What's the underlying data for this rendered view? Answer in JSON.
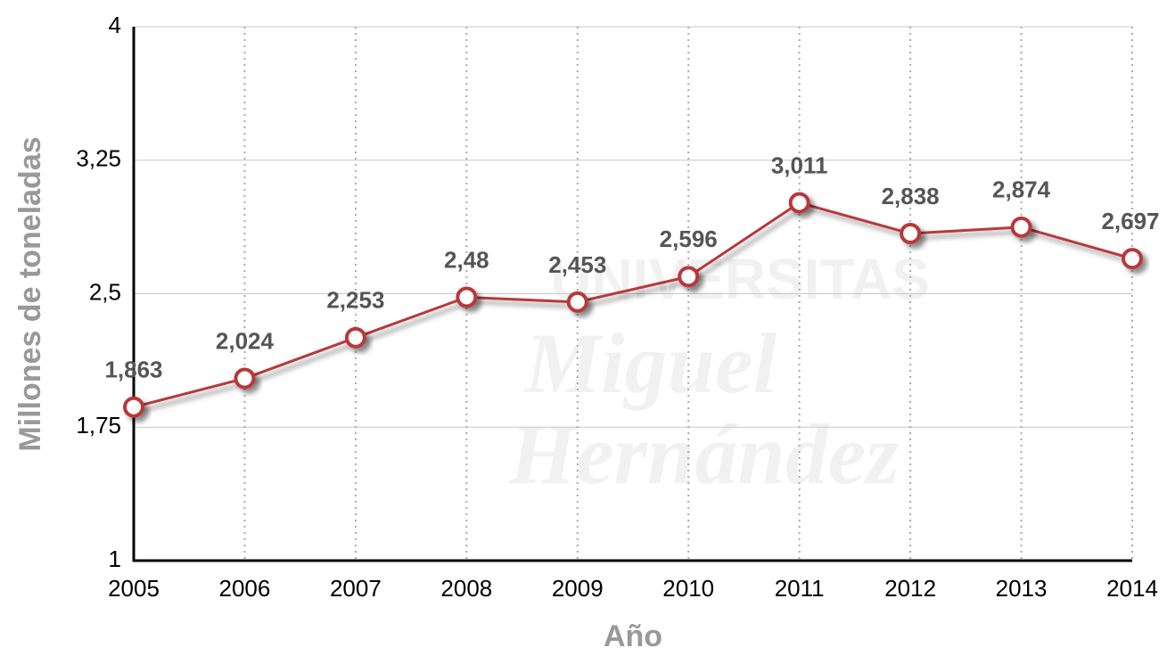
{
  "chart_data": {
    "type": "line",
    "xlabel": "Año",
    "ylabel": "Millones de toneladas",
    "watermark": [
      "UNIVERSITAS",
      "Miguel",
      "Hernández"
    ],
    "x": [
      2005,
      2006,
      2007,
      2008,
      2009,
      2010,
      2011,
      2012,
      2013,
      2014
    ],
    "xlim": [
      2005,
      2014
    ],
    "xticks": [
      2005,
      2006,
      2007,
      2008,
      2009,
      2010,
      2011,
      2012,
      2013,
      2014
    ],
    "series": [
      {
        "color": "#b8373a",
        "values": [
          1.863,
          2.024,
          2.253,
          2.48,
          2.453,
          2.596,
          3.011,
          2.838,
          2.874,
          2.697
        ],
        "value_labels": [
          "1,863",
          "2,024",
          "2,253",
          "2,48",
          "2,453",
          "2,596",
          "3,011",
          "2,838",
          "2,874",
          "2,697"
        ]
      }
    ],
    "ylim": [
      1,
      4
    ],
    "yticks": [
      1,
      {
        "value": 1.75,
        "label": "1,75"
      },
      {
        "value": 2.5,
        "label": "2,5"
      },
      {
        "value": 3.25,
        "label": "3,25"
      },
      4
    ],
    "grid": true
  }
}
